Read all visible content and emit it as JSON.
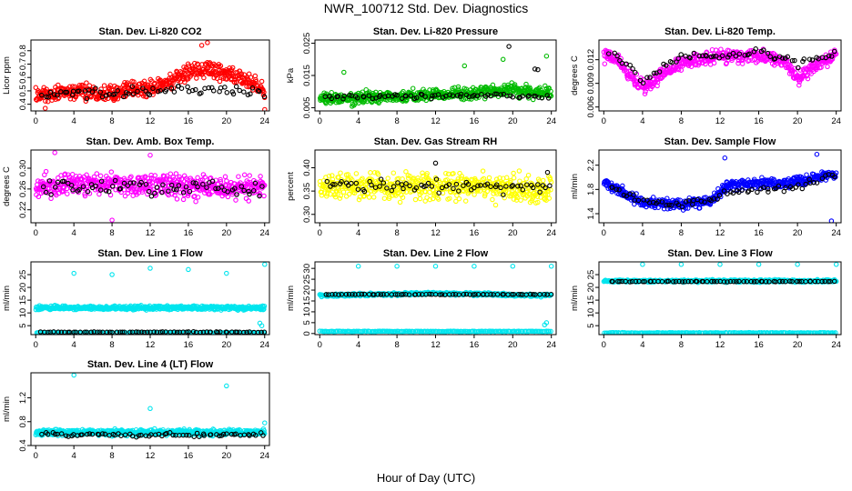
{
  "figure": {
    "title": "NWR_100712  Std. Dev. Diagnostics",
    "xlabel": "Hour of Day (UTC)"
  },
  "chart_data": [
    {
      "type": "scatter",
      "title": "Stan. Dev. Li-820 CO2",
      "ylabel": "Licor ppm",
      "xlim": [
        -0.5,
        24.5
      ],
      "ylim": [
        0.35,
        0.88
      ],
      "xticks": [
        "0",
        "4",
        "8",
        "12",
        "16",
        "20",
        "24"
      ],
      "yticks": [
        "0.4",
        "0.5",
        "0.6",
        "0.7",
        "0.8"
      ],
      "series": [
        {
          "role": "sample",
          "color": "#ff0000",
          "count": 520,
          "x_range": [
            0,
            24
          ],
          "trend": [
            [
              0,
              0.46
            ],
            [
              4,
              0.5
            ],
            [
              8,
              0.49
            ],
            [
              12,
              0.52
            ],
            [
              14,
              0.56
            ],
            [
              16,
              0.65
            ],
            [
              19,
              0.65
            ],
            [
              22,
              0.58
            ],
            [
              24,
              0.5
            ]
          ],
          "spread": 0.09,
          "outliers": [
            [
              18,
              0.86
            ],
            [
              17.4,
              0.84
            ],
            [
              1,
              0.37
            ],
            [
              24,
              0.36
            ]
          ]
        },
        {
          "role": "reference",
          "color": "#000000",
          "count": 70,
          "x_range": [
            0.5,
            24
          ],
          "trend": [
            [
              0,
              0.47
            ],
            [
              8,
              0.48
            ],
            [
              12,
              0.5
            ],
            [
              16,
              0.52
            ],
            [
              24,
              0.49
            ]
          ],
          "spread": 0.05
        }
      ]
    },
    {
      "type": "scatter",
      "title": "Stan. Dev. Li-820 Pressure",
      "ylabel": "kPa",
      "xlim": [
        -0.5,
        24.5
      ],
      "ylim": [
        0.004,
        0.026
      ],
      "xticks": [
        "0",
        "4",
        "8",
        "12",
        "16",
        "20",
        "24"
      ],
      "yticks": [
        "0.005",
        "0.015",
        "0.025"
      ],
      "series": [
        {
          "role": "sample",
          "color": "#00bb00",
          "count": 520,
          "x_range": [
            0,
            24
          ],
          "trend": [
            [
              0,
              0.0075
            ],
            [
              4,
              0.008
            ],
            [
              8,
              0.0085
            ],
            [
              12,
              0.009
            ],
            [
              16,
              0.0095
            ],
            [
              20,
              0.0105
            ],
            [
              24,
              0.0095
            ]
          ],
          "spread": 0.0028,
          "outliers": [
            [
              2.5,
              0.016
            ],
            [
              23.5,
              0.021
            ],
            [
              19,
              0.02
            ],
            [
              15,
              0.018
            ]
          ]
        },
        {
          "role": "reference",
          "color": "#000000",
          "count": 70,
          "x_range": [
            0.5,
            24
          ],
          "trend": [
            [
              0,
              0.0085
            ],
            [
              8,
              0.0085
            ],
            [
              16,
              0.009
            ],
            [
              24,
              0.0085
            ]
          ],
          "spread": 0.0012,
          "outliers": [
            [
              19.6,
              0.024
            ],
            [
              22.3,
              0.017
            ],
            [
              22.6,
              0.0168
            ]
          ]
        }
      ]
    },
    {
      "type": "scatter",
      "title": "Stan. Dev. Li-820 Temp.",
      "ylabel": "degrees C",
      "xlim": [
        -0.5,
        24.5
      ],
      "ylim": [
        0.0055,
        0.0145
      ],
      "xticks": [
        "0",
        "4",
        "8",
        "12",
        "16",
        "20",
        "24"
      ],
      "yticks": [
        "0.006",
        "0.009",
        "0.012"
      ],
      "series": [
        {
          "role": "sample",
          "color": "#ff00ff",
          "count": 520,
          "x_range": [
            0,
            24
          ],
          "trend": [
            [
              0,
              0.0125
            ],
            [
              1.5,
              0.012
            ],
            [
              3,
              0.0095
            ],
            [
              4.5,
              0.0085
            ],
            [
              6,
              0.01
            ],
            [
              8,
              0.0115
            ],
            [
              12,
              0.0125
            ],
            [
              16,
              0.0125
            ],
            [
              19,
              0.0115
            ],
            [
              20,
              0.0095
            ],
            [
              22,
              0.0115
            ],
            [
              24,
              0.0125
            ]
          ],
          "spread": 0.0012
        },
        {
          "role": "reference",
          "color": "#000000",
          "count": 70,
          "x_range": [
            0.5,
            24
          ],
          "trend": [
            [
              0,
              0.013
            ],
            [
              2,
              0.012
            ],
            [
              4,
              0.009
            ],
            [
              6,
              0.011
            ],
            [
              8,
              0.0125
            ],
            [
              12,
              0.0125
            ],
            [
              16,
              0.013
            ],
            [
              20,
              0.0115
            ],
            [
              24,
              0.013
            ]
          ],
          "spread": 0.0007
        }
      ]
    },
    {
      "type": "scatter",
      "title": "Stan. Dev. Amb. Box Temp.",
      "ylabel": "degrees C",
      "xlim": [
        -0.5,
        24.5
      ],
      "ylim": [
        0.195,
        0.335
      ],
      "xticks": [
        "0",
        "4",
        "8",
        "12",
        "16",
        "20",
        "24"
      ],
      "yticks": [
        "0.22",
        "0.26",
        "0.30"
      ],
      "series": [
        {
          "role": "sample",
          "color": "#ff00ff",
          "count": 520,
          "x_range": [
            0,
            24
          ],
          "trend": [
            [
              0,
              0.265
            ],
            [
              8,
              0.27
            ],
            [
              16,
              0.265
            ],
            [
              24,
              0.26
            ]
          ],
          "spread": 0.032,
          "outliers": [
            [
              2,
              0.33
            ],
            [
              12,
              0.325
            ],
            [
              8,
              0.2
            ]
          ]
        },
        {
          "role": "reference",
          "color": "#000000",
          "count": 70,
          "x_range": [
            0.5,
            24
          ],
          "trend": [
            [
              0,
              0.26
            ],
            [
              12,
              0.265
            ],
            [
              24,
              0.255
            ]
          ],
          "spread": 0.022
        }
      ]
    },
    {
      "type": "scatter",
      "title": "Stan. Dev. Gas Stream RH",
      "ylabel": "percent",
      "xlim": [
        -0.5,
        24.5
      ],
      "ylim": [
        0.282,
        0.438
      ],
      "xticks": [
        "0",
        "4",
        "8",
        "12",
        "16",
        "20",
        "24"
      ],
      "yticks": [
        "0.30",
        "0.35",
        "0.40"
      ],
      "series": [
        {
          "role": "sample",
          "color": "#ffff00",
          "count": 520,
          "x_range": [
            0,
            24
          ],
          "trend": [
            [
              0,
              0.36
            ],
            [
              12,
              0.36
            ],
            [
              24,
              0.355
            ]
          ],
          "spread": 0.04
        },
        {
          "role": "reference",
          "color": "#000000",
          "count": 70,
          "x_range": [
            0.5,
            24
          ],
          "trend": [
            [
              0,
              0.36
            ],
            [
              12,
              0.36
            ],
            [
              24,
              0.36
            ]
          ],
          "spread": 0.022,
          "outliers": [
            [
              12,
              0.41
            ],
            [
              23.6,
              0.39
            ]
          ]
        }
      ]
    },
    {
      "type": "scatter",
      "title": "Stan. Dev. Sample Flow",
      "ylabel": "ml/min",
      "xlim": [
        -0.5,
        24.5
      ],
      "ylim": [
        1.25,
        2.45
      ],
      "xticks": [
        "0",
        "4",
        "8",
        "12",
        "16",
        "20",
        "24"
      ],
      "yticks": [
        "1.4",
        "1.8",
        "2.2"
      ],
      "series": [
        {
          "role": "sample",
          "color": "#0000ff",
          "count": 520,
          "x_range": [
            0,
            24
          ],
          "trend": [
            [
              0,
              1.92
            ],
            [
              2,
              1.75
            ],
            [
              4,
              1.58
            ],
            [
              8,
              1.55
            ],
            [
              11,
              1.62
            ],
            [
              13,
              1.88
            ],
            [
              16,
              1.9
            ],
            [
              20,
              1.92
            ],
            [
              22,
              2.0
            ],
            [
              24,
              2.05
            ]
          ],
          "spread": 0.12,
          "outliers": [
            [
              12.5,
              2.32
            ],
            [
              22,
              2.38
            ],
            [
              23.5,
              1.28
            ]
          ]
        },
        {
          "role": "reference",
          "color": "#000000",
          "count": 70,
          "x_range": [
            0.5,
            24
          ],
          "trend": [
            [
              0,
              1.9
            ],
            [
              4,
              1.6
            ],
            [
              8,
              1.55
            ],
            [
              12,
              1.7
            ],
            [
              16,
              1.8
            ],
            [
              20,
              1.85
            ],
            [
              24,
              2.05
            ]
          ],
          "spread": 0.08
        }
      ]
    },
    {
      "type": "scatter",
      "title": "Stan. Dev. Line 1 Flow",
      "ylabel": "ml/min",
      "xlim": [
        -0.5,
        24.5
      ],
      "ylim": [
        1.5,
        30
      ],
      "xticks": [
        "0",
        "4",
        "8",
        "12",
        "16",
        "20",
        "24"
      ],
      "yticks": [
        "5",
        "10",
        "15",
        "20",
        "25"
      ],
      "series": [
        {
          "role": "sample-high",
          "color": "#00e5ee",
          "count": 500,
          "x_range": [
            0,
            24
          ],
          "trend": [
            [
              0,
              12
            ],
            [
              24,
              12
            ]
          ],
          "spread": 1.1,
          "outliers": [
            [
              4,
              25.5
            ],
            [
              8,
              25
            ],
            [
              12,
              27.5
            ],
            [
              16,
              27
            ],
            [
              20,
              25.5
            ],
            [
              24,
              29
            ],
            [
              23.5,
              6
            ],
            [
              23.7,
              5
            ]
          ]
        },
        {
          "role": "sample-low",
          "color": "#00e5ee",
          "count": 200,
          "x_range": [
            0,
            24
          ],
          "trend": [
            [
              0,
              2.2
            ],
            [
              24,
              2.2
            ]
          ],
          "spread": 0.2
        },
        {
          "role": "reference",
          "color": "#000000",
          "count": 70,
          "x_range": [
            0.5,
            24
          ],
          "trend": [
            [
              0,
              2.5
            ],
            [
              24,
              2.5
            ]
          ],
          "spread": 0.2
        }
      ]
    },
    {
      "type": "scatter",
      "title": "Stan. Dev. Line 2 Flow",
      "ylabel": "ml/min",
      "xlim": [
        -0.5,
        24.5
      ],
      "ylim": [
        -0.5,
        33
      ],
      "xticks": [
        "0",
        "4",
        "8",
        "12",
        "16",
        "20",
        "24"
      ],
      "yticks": [
        "0",
        "5",
        "10",
        "15",
        "20",
        "25",
        "30"
      ],
      "series": [
        {
          "role": "sample-high",
          "color": "#00e5ee",
          "count": 500,
          "x_range": [
            0,
            24
          ],
          "trend": [
            [
              0,
              17.5
            ],
            [
              12,
              18.5
            ],
            [
              24,
              17.5
            ]
          ],
          "spread": 0.9,
          "outliers": [
            [
              4,
              31
            ],
            [
              8,
              31
            ],
            [
              12,
              31
            ],
            [
              16,
              31
            ],
            [
              20,
              31
            ],
            [
              24,
              31
            ],
            [
              23.3,
              4
            ],
            [
              23.5,
              5
            ]
          ]
        },
        {
          "role": "sample-low",
          "color": "#00e5ee",
          "count": 200,
          "x_range": [
            0,
            24
          ],
          "trend": [
            [
              0,
              1
            ],
            [
              24,
              1
            ]
          ],
          "spread": 0.2
        },
        {
          "role": "reference",
          "color": "#000000",
          "count": 70,
          "x_range": [
            0.5,
            24
          ],
          "trend": [
            [
              0,
              18
            ],
            [
              24,
              18
            ]
          ],
          "spread": 0.2
        }
      ]
    },
    {
      "type": "scatter",
      "title": "Stan. Dev. Line 3 Flow",
      "ylabel": "ml/min",
      "xlim": [
        -0.5,
        24.5
      ],
      "ylim": [
        1.5,
        30
      ],
      "xticks": [
        "0",
        "4",
        "8",
        "12",
        "16",
        "20",
        "24"
      ],
      "yticks": [
        "5",
        "10",
        "15",
        "20",
        "25"
      ],
      "series": [
        {
          "role": "sample-high",
          "color": "#00e5ee",
          "count": 500,
          "x_range": [
            0,
            24
          ],
          "trend": [
            [
              0,
              22.5
            ],
            [
              24,
              22.5
            ]
          ],
          "spread": 0.7,
          "outliers": [
            [
              4,
              29
            ],
            [
              8,
              29
            ],
            [
              12,
              29
            ],
            [
              16,
              29
            ],
            [
              20,
              29
            ],
            [
              24,
              29
            ]
          ]
        },
        {
          "role": "sample-low",
          "color": "#00e5ee",
          "count": 200,
          "x_range": [
            0,
            24
          ],
          "trend": [
            [
              0,
              2.2
            ],
            [
              24,
              2.2
            ]
          ],
          "spread": 0.2
        },
        {
          "role": "reference",
          "color": "#000000",
          "count": 70,
          "x_range": [
            0.5,
            24
          ],
          "trend": [
            [
              0,
              22.3
            ],
            [
              24,
              22.3
            ]
          ],
          "spread": 0.2
        }
      ]
    },
    {
      "type": "scatter",
      "title": "Stan. Dev. Line 4 (LT) Flow",
      "ylabel": "ml/min",
      "xlim": [
        -0.5,
        24.5
      ],
      "ylim": [
        0.4,
        1.62
      ],
      "xticks": [
        "0",
        "4",
        "8",
        "12",
        "16",
        "20",
        "24"
      ],
      "yticks": [
        "0.4",
        "0.8",
        "1.2"
      ],
      "series": [
        {
          "role": "sample",
          "color": "#00e5ee",
          "count": 600,
          "x_range": [
            0,
            24
          ],
          "trend": [
            [
              0,
              0.62
            ],
            [
              24,
              0.62
            ]
          ],
          "spread": 0.07,
          "outliers": [
            [
              4,
              1.58
            ],
            [
              20,
              1.4
            ],
            [
              12,
              1.02
            ],
            [
              24,
              0.78
            ]
          ]
        },
        {
          "role": "reference",
          "color": "#000000",
          "count": 70,
          "x_range": [
            0.5,
            24
          ],
          "trend": [
            [
              0,
              0.58
            ],
            [
              24,
              0.58
            ]
          ],
          "spread": 0.05
        }
      ]
    }
  ]
}
